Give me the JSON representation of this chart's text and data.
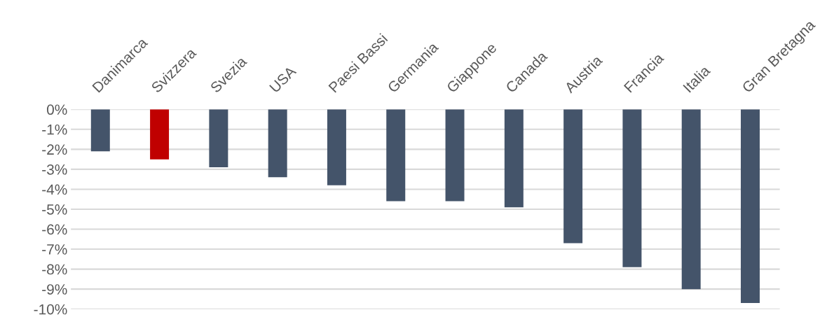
{
  "chart_data": {
    "type": "bar",
    "categories": [
      "Danimarca",
      "Svizzera",
      "Svezia",
      "USA",
      "Paesi Bassi",
      "Germania",
      "Giappone",
      "Canada",
      "Austria",
      "Francia",
      "Italia",
      "Gran Bretagna"
    ],
    "values": [
      -2.1,
      -2.5,
      -2.9,
      -3.4,
      -3.8,
      -4.6,
      -4.6,
      -4.9,
      -6.7,
      -7.9,
      -9.0,
      -9.7
    ],
    "colors": [
      "#44546a",
      "#c00000",
      "#44546a",
      "#44546a",
      "#44546a",
      "#44546a",
      "#44546a",
      "#44546a",
      "#44546a",
      "#44546a",
      "#44546a",
      "#44546a"
    ],
    "ylim": [
      -10,
      0
    ],
    "yticks": [
      {
        "value": 0,
        "label": "0%"
      },
      {
        "value": -1,
        "label": "-1%"
      },
      {
        "value": -2,
        "label": "-2%"
      },
      {
        "value": -3,
        "label": "-3%"
      },
      {
        "value": -4,
        "label": "-4%"
      },
      {
        "value": -5,
        "label": "-5%"
      },
      {
        "value": -6,
        "label": "-6%"
      },
      {
        "value": -7,
        "label": "-7%"
      },
      {
        "value": -8,
        "label": "-8%"
      },
      {
        "value": -9,
        "label": "-9%"
      },
      {
        "value": -10,
        "label": "-10%"
      }
    ],
    "grid": "y"
  }
}
